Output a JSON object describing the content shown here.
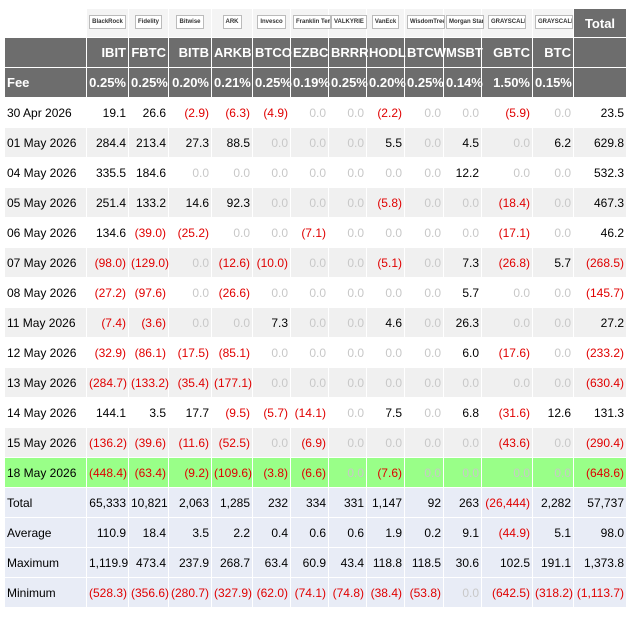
{
  "table": {
    "logos": [
      "BlackRock",
      "Fidelity",
      "Bitwise",
      "ARK",
      "Invesco",
      "Franklin Templeton",
      "VALKYRIE",
      "VanEck",
      "WisdomTree",
      "Morgan Stanley",
      "GRAYSCALE",
      "GRAYSCALE"
    ],
    "total_label": "Total",
    "columns": [
      "IBIT",
      "FBTC",
      "BITB",
      "ARKB",
      "BTCO",
      "EZBC",
      "BRRR",
      "HODL",
      "BTCW",
      "MSBT",
      "GBTC",
      "BTC"
    ],
    "fee_label": "Fee",
    "fees": [
      "0.25%",
      "0.25%",
      "0.20%",
      "0.21%",
      "0.25%",
      "0.19%",
      "0.25%",
      "0.20%",
      "0.25%",
      "0.14%",
      "1.50%",
      "0.15%"
    ],
    "rows": [
      [
        "30 Apr 2026",
        "19.1",
        "26.6",
        "(2.9)",
        "(6.3)",
        "(4.9)",
        "0.0",
        "0.0",
        "(2.2)",
        "0.0",
        "0.0",
        "(5.9)",
        "0.0",
        "23.5"
      ],
      [
        "01 May 2026",
        "284.4",
        "213.4",
        "27.3",
        "88.5",
        "0.0",
        "0.0",
        "0.0",
        "5.5",
        "0.0",
        "4.5",
        "0.0",
        "6.2",
        "629.8"
      ],
      [
        "04 May 2026",
        "335.5",
        "184.6",
        "0.0",
        "0.0",
        "0.0",
        "0.0",
        "0.0",
        "0.0",
        "0.0",
        "12.2",
        "0.0",
        "0.0",
        "532.3"
      ],
      [
        "05 May 2026",
        "251.4",
        "133.2",
        "14.6",
        "92.3",
        "0.0",
        "0.0",
        "0.0",
        "(5.8)",
        "0.0",
        "0.0",
        "(18.4)",
        "0.0",
        "467.3"
      ],
      [
        "06 May 2026",
        "134.6",
        "(39.0)",
        "(25.2)",
        "0.0",
        "0.0",
        "(7.1)",
        "0.0",
        "0.0",
        "0.0",
        "0.0",
        "(17.1)",
        "0.0",
        "46.2"
      ],
      [
        "07 May 2026",
        "(98.0)",
        "(129.0)",
        "0.0",
        "(12.6)",
        "(10.0)",
        "0.0",
        "0.0",
        "(5.1)",
        "0.0",
        "7.3",
        "(26.8)",
        "5.7",
        "(268.5)"
      ],
      [
        "08 May 2026",
        "(27.2)",
        "(97.6)",
        "0.0",
        "(26.6)",
        "0.0",
        "0.0",
        "0.0",
        "0.0",
        "0.0",
        "5.7",
        "0.0",
        "0.0",
        "(145.7)"
      ],
      [
        "11 May 2026",
        "(7.4)",
        "(3.6)",
        "0.0",
        "0.0",
        "7.3",
        "0.0",
        "0.0",
        "4.6",
        "0.0",
        "26.3",
        "0.0",
        "0.0",
        "27.2"
      ],
      [
        "12 May 2026",
        "(32.9)",
        "(86.1)",
        "(17.5)",
        "(85.1)",
        "0.0",
        "0.0",
        "0.0",
        "0.0",
        "0.0",
        "6.0",
        "(17.6)",
        "0.0",
        "(233.2)"
      ],
      [
        "13 May 2026",
        "(284.7)",
        "(133.2)",
        "(35.4)",
        "(177.1)",
        "0.0",
        "0.0",
        "0.0",
        "0.0",
        "0.0",
        "0.0",
        "0.0",
        "0.0",
        "(630.4)"
      ],
      [
        "14 May 2026",
        "144.1",
        "3.5",
        "17.7",
        "(9.5)",
        "(5.7)",
        "(14.1)",
        "0.0",
        "7.5",
        "0.0",
        "6.8",
        "(31.6)",
        "12.6",
        "131.3"
      ],
      [
        "15 May 2026",
        "(136.2)",
        "(39.6)",
        "(11.6)",
        "(52.5)",
        "0.0",
        "(6.9)",
        "0.0",
        "0.0",
        "0.0",
        "0.0",
        "(43.6)",
        "0.0",
        "(290.4)"
      ],
      [
        "18 May 2026",
        "(448.4)",
        "(63.4)",
        "(9.2)",
        "(109.6)",
        "(3.8)",
        "(6.6)",
        "0.0",
        "(7.6)",
        "0.0",
        "0.0",
        "0.0",
        "0.0",
        "(648.6)"
      ]
    ],
    "summary": [
      [
        "Total",
        "65,333",
        "10,821",
        "2,063",
        "1,285",
        "232",
        "334",
        "331",
        "1,147",
        "92",
        "263",
        "(26,444)",
        "2,282",
        "57,737"
      ],
      [
        "Average",
        "110.9",
        "18.4",
        "3.5",
        "2.2",
        "0.4",
        "0.6",
        "0.6",
        "1.9",
        "0.2",
        "9.1",
        "(44.9)",
        "5.1",
        "98.0"
      ],
      [
        "Maximum",
        "1,119.9",
        "473.4",
        "237.9",
        "268.7",
        "63.4",
        "60.9",
        "43.4",
        "118.8",
        "118.5",
        "30.6",
        "102.5",
        "191.1",
        "1,373.8"
      ],
      [
        "Minimum",
        "(528.3)",
        "(356.6)",
        "(280.7)",
        "(327.9)",
        "(62.0)",
        "(74.1)",
        "(74.8)",
        "(38.4)",
        "(53.8)",
        "0.0",
        "(642.5)",
        "(318.2)",
        "(1,113.7)"
      ]
    ]
  }
}
